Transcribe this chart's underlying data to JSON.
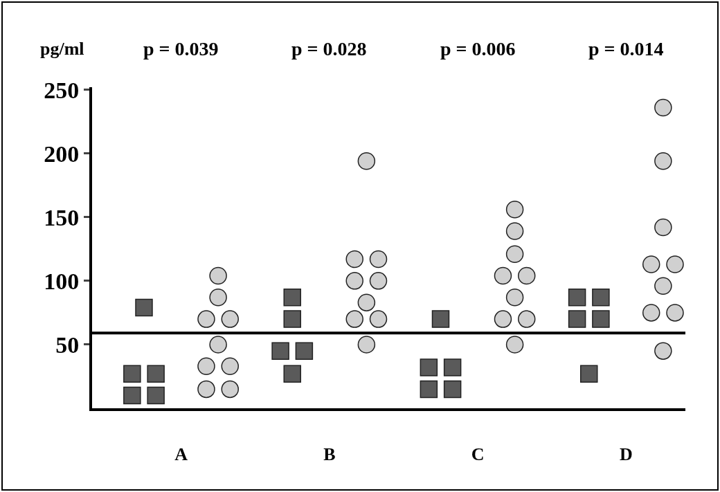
{
  "chart_data": {
    "type": "scatter",
    "ylabel": "pg/ml",
    "annotations": [
      "p = 0.039",
      "p = 0.028",
      "p = 0.006",
      "p = 0.014"
    ],
    "categories": [
      "A",
      "B",
      "C",
      "D"
    ],
    "ylim": [
      0,
      252
    ],
    "yticks": [
      50,
      100,
      150,
      200,
      250
    ],
    "grid": false,
    "ref_lines": [
      {
        "axis": "y",
        "value": 59,
        "color": "#000000"
      }
    ],
    "series": [
      {
        "marker": "square",
        "color": "#5a5a5a",
        "x": [
          "A",
          "A",
          "A",
          "A",
          "A",
          "B",
          "B",
          "B",
          "B",
          "B",
          "C",
          "C",
          "C",
          "C",
          "C",
          "D",
          "D",
          "D",
          "D",
          "D"
        ],
        "values": [
          27,
          27,
          10,
          10,
          79,
          87,
          70,
          45,
          45,
          27,
          70,
          32,
          32,
          15,
          15,
          87,
          87,
          70,
          70,
          27
        ]
      },
      {
        "marker": "circle",
        "color": "#d0d0d0",
        "x": [
          "A",
          "A",
          "A",
          "A",
          "A",
          "A",
          "A",
          "A",
          "A",
          "B",
          "B",
          "B",
          "B",
          "B",
          "B",
          "B",
          "B",
          "B",
          "C",
          "C",
          "C",
          "C",
          "C",
          "C",
          "C",
          "C",
          "C",
          "D",
          "D",
          "D",
          "D",
          "D",
          "D",
          "D",
          "D",
          "D"
        ],
        "values": [
          104,
          87,
          70,
          70,
          50,
          33,
          33,
          15,
          15,
          194,
          117,
          117,
          100,
          100,
          83,
          70,
          70,
          50,
          156,
          139,
          121,
          104,
          104,
          87,
          70,
          70,
          50,
          236,
          194,
          142,
          113,
          113,
          96,
          75,
          75,
          45
        ]
      }
    ]
  }
}
